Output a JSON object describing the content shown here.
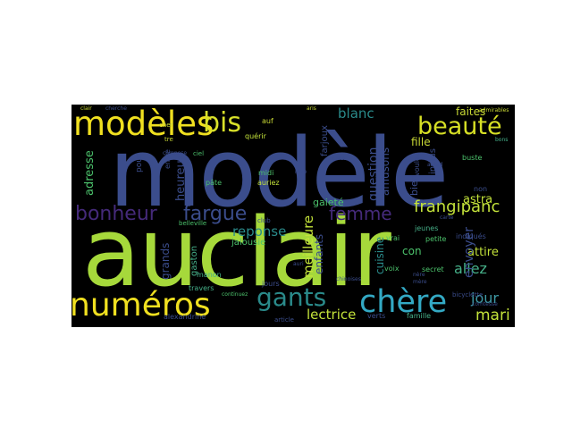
{
  "palette": {
    "background": "#000000",
    "lime": "#a6d93b",
    "yellow": "#f0e020",
    "indigo": "#3b4d8c",
    "purple": "#452a7a",
    "teal": "#2a8a8a",
    "cyan": "#33a9c4",
    "green": "#4cc26c"
  },
  "words": [
    {
      "text": "modèle",
      "color": "#3b4d8c"
    },
    {
      "text": "auclair",
      "color": "#a6d93b"
    },
    {
      "text": "modèles",
      "color": "#f0e020"
    },
    {
      "text": "numéros",
      "color": "#f0e020"
    },
    {
      "text": "bis",
      "color": "#d8e02a"
    },
    {
      "text": "beauté",
      "color": "#d6df25"
    },
    {
      "text": "chère",
      "color": "#33a9c4"
    },
    {
      "text": "gants",
      "color": "#2a8a8a"
    },
    {
      "text": "bonheur",
      "color": "#452a7a"
    },
    {
      "text": "fargue",
      "color": "#3b4d8c"
    },
    {
      "text": "femme",
      "color": "#452a7a"
    },
    {
      "text": "frangipanc",
      "color": "#c3e23a"
    },
    {
      "text": "meilleure",
      "color": "#c3e23a"
    },
    {
      "text": "reponse",
      "color": "#2a8a8a"
    },
    {
      "text": "lectrice",
      "color": "#c3e23a"
    },
    {
      "text": "mari",
      "color": "#c3e23a"
    },
    {
      "text": "jour",
      "color": "#3f9aa6"
    },
    {
      "text": "allez",
      "color": "#46b089"
    },
    {
      "text": "blanc",
      "color": "#2a8a8a"
    },
    {
      "text": "faites",
      "color": "#c9d935"
    },
    {
      "text": "fille",
      "color": "#c9d935"
    },
    {
      "text": "astra",
      "color": "#c3e23a"
    },
    {
      "text": "attire",
      "color": "#c3e23a"
    },
    {
      "text": "envoyer",
      "color": "#3b4d8c"
    },
    {
      "text": "question",
      "color": "#3b4d8c"
    },
    {
      "text": "amusons",
      "color": "#3b4d8c"
    },
    {
      "text": "gaieté",
      "color": "#4cc26c"
    },
    {
      "text": "enfants",
      "color": "#3b4d8c"
    },
    {
      "text": "cuisine",
      "color": "#2a8a8a"
    },
    {
      "text": "con",
      "color": "#4cc26c"
    },
    {
      "text": "adresse",
      "color": "#4cc26c"
    },
    {
      "text": "heureux",
      "color": "#3b4d8c"
    },
    {
      "text": "grands",
      "color": "#3b4d8c"
    },
    {
      "text": "gaston",
      "color": "#46b089"
    },
    {
      "text": "jalousie",
      "color": "#4cc26c"
    },
    {
      "text": "farjoux",
      "color": "#3b4d8c"
    },
    {
      "text": "auf",
      "color": "#c9d935"
    },
    {
      "text": "quérir",
      "color": "#c3e23a"
    },
    {
      "text": "midi",
      "color": "#4cc26c"
    },
    {
      "text": "auriez",
      "color": "#c3e23a"
    },
    {
      "text": "bien",
      "color": "#3b4d8c"
    },
    {
      "text": "inclus",
      "color": "#3b4d8c"
    },
    {
      "text": "voulez",
      "color": "#3b4d8c"
    },
    {
      "text": "buste",
      "color": "#4cc26c"
    },
    {
      "text": "non",
      "color": "#3b4d8c"
    },
    {
      "text": "petite",
      "color": "#4cc26c"
    },
    {
      "text": "jeunes",
      "color": "#46b089"
    },
    {
      "text": "secret",
      "color": "#4cc26c"
    },
    {
      "text": "vrai",
      "color": "#4cc26c"
    },
    {
      "text": "voix",
      "color": "#4cc26c"
    },
    {
      "text": "famille",
      "color": "#46b089"
    },
    {
      "text": "verts",
      "color": "#3b4d8c"
    },
    {
      "text": "travers",
      "color": "#46b089"
    },
    {
      "text": "manon",
      "color": "#46b089"
    },
    {
      "text": "alexandrine",
      "color": "#3b4d8c"
    },
    {
      "text": "jours",
      "color": "#3b4d8c"
    },
    {
      "text": "belleville",
      "color": "#4cc26c"
    },
    {
      "text": "pour",
      "color": "#3b4d8c"
    },
    {
      "text": "envie",
      "color": "#3b4d8c"
    },
    {
      "text": "pâte",
      "color": "#4cc26c"
    },
    {
      "text": "ciel",
      "color": "#4cc26c"
    },
    {
      "text": "cher",
      "color": "#c9d935"
    },
    {
      "text": "tre",
      "color": "#c9d935"
    },
    {
      "text": "club",
      "color": "#3b4d8c"
    },
    {
      "text": "carte",
      "color": "#3b4d8c"
    },
    {
      "text": "bicyclette",
      "color": "#3b4d8c"
    },
    {
      "text": "indiqués",
      "color": "#3b4d8c"
    },
    {
      "text": "article",
      "color": "#3b4d8c"
    },
    {
      "text": "continuez",
      "color": "#4cc26c"
    },
    {
      "text": "clair",
      "color": "#c9d935"
    },
    {
      "text": "cherche",
      "color": "#3b4d8c"
    },
    {
      "text": "bons",
      "color": "#46b089"
    },
    {
      "text": "comtesse",
      "color": "#3b4d8c"
    },
    {
      "text": "admirables",
      "color": "#c9d935"
    },
    {
      "text": "aris",
      "color": "#c9d935"
    },
    {
      "text": "colet",
      "color": "#3b4d8c"
    },
    {
      "text": "compose",
      "color": "#3b4d8c"
    },
    {
      "text": "chinoises",
      "color": "#3b4d8c"
    },
    {
      "text": "nère",
      "color": "#3b4d8c"
    },
    {
      "text": "mère",
      "color": "#3b4d8c"
    },
    {
      "text": "auri",
      "color": "#3b4d8c"
    },
    {
      "text": "rêve",
      "color": "#3b4d8c"
    },
    {
      "text": "abord",
      "color": "#3b4d8c"
    }
  ]
}
